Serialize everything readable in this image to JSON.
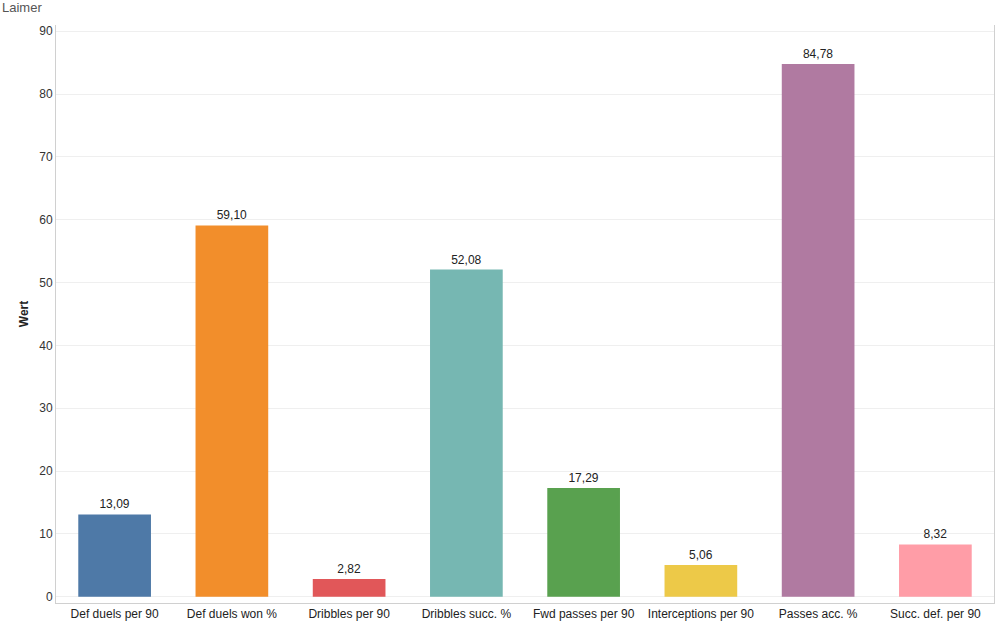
{
  "chart_data": {
    "type": "bar",
    "title": "Laimer",
    "y_label": "Wert",
    "categories": [
      "Def duels per 90",
      "Def duels won %",
      "Dribbles per 90",
      "Dribbles succ. %",
      "Fwd passes per 90",
      "Interceptions per 90",
      "Passes acc. %",
      "Succ. def. per 90"
    ],
    "values": [
      13.09,
      59.1,
      2.82,
      52.08,
      17.29,
      5.06,
      84.78,
      8.32
    ],
    "value_labels": [
      "13,09",
      "59,10",
      "2,82",
      "52,08",
      "17,29",
      "5,06",
      "84,78",
      "8,32"
    ],
    "colors": [
      "#4e79a7",
      "#f28e2b",
      "#e15759",
      "#76b7b2",
      "#59a14f",
      "#edc948",
      "#b07aa1",
      "#ff9da7"
    ],
    "ylim": [
      -1,
      91
    ],
    "yticks": [
      0,
      10,
      20,
      30,
      40,
      50,
      60,
      70,
      80,
      90
    ],
    "grid": true,
    "data_labels": true
  }
}
